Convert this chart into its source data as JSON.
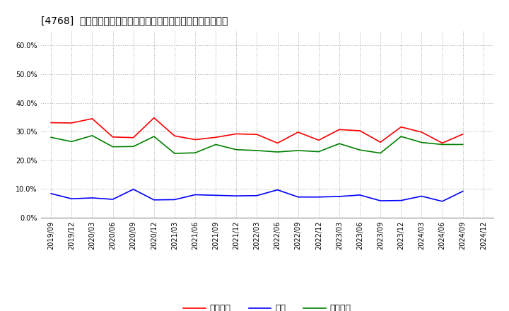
{
  "title": "[4768]  売上債権、在庫、買入債務の総資産に対する比率の推移",
  "x_labels": [
    "2019/09",
    "2019/12",
    "2020/03",
    "2020/06",
    "2020/09",
    "2020/12",
    "2021/03",
    "2021/06",
    "2021/09",
    "2021/12",
    "2022/03",
    "2022/06",
    "2022/09",
    "2022/12",
    "2023/03",
    "2023/06",
    "2023/09",
    "2023/12",
    "2024/03",
    "2024/06",
    "2024/09",
    "2024/12"
  ],
  "urikake": [
    0.331,
    0.33,
    0.345,
    0.281,
    0.279,
    0.348,
    0.285,
    0.272,
    0.28,
    0.292,
    0.29,
    0.26,
    0.298,
    0.27,
    0.307,
    0.303,
    0.263,
    0.316,
    0.298,
    0.26,
    0.291,
    null
  ],
  "zaiko": [
    0.084,
    0.066,
    0.069,
    0.064,
    0.099,
    0.062,
    0.063,
    0.08,
    0.078,
    0.076,
    0.077,
    0.097,
    0.072,
    0.072,
    0.074,
    0.079,
    0.059,
    0.06,
    0.075,
    0.057,
    0.092,
    null
  ],
  "kaiire": [
    0.28,
    0.265,
    0.286,
    0.247,
    0.248,
    0.283,
    0.224,
    0.226,
    0.255,
    0.237,
    0.234,
    0.229,
    0.234,
    0.23,
    0.258,
    0.236,
    0.225,
    0.283,
    0.262,
    0.255,
    0.255,
    null
  ],
  "urikake_color": "#ff0000",
  "zaiko_color": "#0000ff",
  "kaiire_color": "#008000",
  "background_color": "#ffffff",
  "grid_color": "#aaaaaa",
  "ylim": [
    0.0,
    0.65
  ],
  "yticks": [
    0.0,
    0.1,
    0.2,
    0.3,
    0.4,
    0.5,
    0.6
  ],
  "legend_labels": [
    "売上債権",
    "在庫",
    "買入債務"
  ],
  "title_fontsize": 10,
  "tick_fontsize": 7,
  "legend_fontsize": 9
}
